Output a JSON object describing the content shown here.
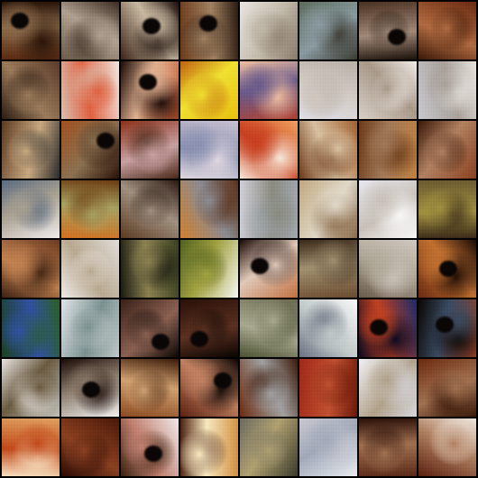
{
  "image": {
    "kind": "generated-sample-grid",
    "rows": 8,
    "columns": 8,
    "tiles": [
      {
        "colors": [
          "#5a2a12",
          "#8a6a4a",
          "#2a1408"
        ],
        "dark": true
      },
      {
        "colors": [
          "#6a5a4a",
          "#b0a090",
          "#3a2a20"
        ],
        "dark": false
      },
      {
        "colors": [
          "#3a2418",
          "#c8b8a0",
          "#1a0c08"
        ],
        "dark": true
      },
      {
        "colors": [
          "#6a3a1a",
          "#a08060",
          "#2a1a10"
        ],
        "dark": true
      },
      {
        "colors": [
          "#e8e4e0",
          "#c0b8a8",
          "#8a7a6a"
        ],
        "dark": false
      },
      {
        "colors": [
          "#5a6a5a",
          "#8a9aa0",
          "#3a3a30"
        ],
        "dark": false
      },
      {
        "colors": [
          "#4a3020",
          "#a08878",
          "#1a1008"
        ],
        "dark": true
      },
      {
        "colors": [
          "#6a2a10",
          "#b06a40",
          "#3a1808"
        ],
        "dark": false
      },
      {
        "colors": [
          "#5a3a2a",
          "#9a7a5a",
          "#2a1a10"
        ],
        "dark": false
      },
      {
        "colors": [
          "#f0e8e0",
          "#e06040",
          "#d8c0b0"
        ],
        "dark": false
      },
      {
        "colors": [
          "#c05028",
          "#e0b090",
          "#1a0a06"
        ],
        "dark": true
      },
      {
        "colors": [
          "#e8c010",
          "#f0e030",
          "#c06010"
        ],
        "dark": false
      },
      {
        "colors": [
          "#b04030",
          "#6a5a8a",
          "#f0c0a0"
        ],
        "dark": false
      },
      {
        "colors": [
          "#e0e0e8",
          "#d0c8c0",
          "#b8b0a8"
        ],
        "dark": false
      },
      {
        "colors": [
          "#d8d0c8",
          "#a89888",
          "#f0ece8"
        ],
        "dark": false
      },
      {
        "colors": [
          "#c8c8d0",
          "#a8a098",
          "#e8e4e0"
        ],
        "dark": false
      },
      {
        "colors": [
          "#5a3a20",
          "#c8a880",
          "#2a2a2a"
        ],
        "dark": false
      },
      {
        "colors": [
          "#a05020",
          "#8a7050",
          "#2a1008"
        ],
        "dark": true
      },
      {
        "colors": [
          "#8a3018",
          "#c8a0a0",
          "#4a2818"
        ],
        "dark": false
      },
      {
        "colors": [
          "#c8c0d0",
          "#8a90b0",
          "#e0d8e0"
        ],
        "dark": false
      },
      {
        "colors": [
          "#f0a060",
          "#c84020",
          "#f8e8d8"
        ],
        "dark": false
      },
      {
        "colors": [
          "#a06030",
          "#d8c0a0",
          "#6a3818"
        ],
        "dark": false
      },
      {
        "colors": [
          "#c08040",
          "#a07858",
          "#6a3a18"
        ],
        "dark": false
      },
      {
        "colors": [
          "#8a4020",
          "#b08060",
          "#3a1808"
        ],
        "dark": false
      },
      {
        "colors": [
          "#f0ecec",
          "#a8a090",
          "#5a6a80"
        ],
        "dark": false
      },
      {
        "colors": [
          "#d07020",
          "#a8a060",
          "#6a3a10"
        ],
        "dark": false
      },
      {
        "colors": [
          "#5a3a20",
          "#a09080",
          "#2a1810"
        ],
        "dark": false
      },
      {
        "colors": [
          "#d08030",
          "#8a8a90",
          "#5a3018"
        ],
        "dark": false
      },
      {
        "colors": [
          "#d0d0d8",
          "#8a8a80",
          "#a0a8b0"
        ],
        "dark": false
      },
      {
        "colors": [
          "#c0a880",
          "#e0d8c8",
          "#8a6a48"
        ],
        "dark": false
      },
      {
        "colors": [
          "#e8e8f0",
          "#c8c0b8",
          "#f8f8f8"
        ],
        "dark": false
      },
      {
        "colors": [
          "#6a5a30",
          "#a09040",
          "#3a2a18"
        ],
        "dark": false
      },
      {
        "colors": [
          "#6a3a20",
          "#c08050",
          "#3a2010"
        ],
        "dark": false
      },
      {
        "colors": [
          "#e0dcd8",
          "#b8a890",
          "#f0ece8"
        ],
        "dark": false
      },
      {
        "colors": [
          "#3a4020",
          "#8a8050",
          "#1a1a10"
        ],
        "dark": false
      },
      {
        "colors": [
          "#f8f8f0",
          "#a0a040",
          "#506020"
        ],
        "dark": false
      },
      {
        "colors": [
          "#c07040",
          "#e0c8b8",
          "#1a0a06"
        ],
        "dark": true
      },
      {
        "colors": [
          "#6a4a30",
          "#a09070",
          "#3a2818"
        ],
        "dark": false
      },
      {
        "colors": [
          "#6a5a4a",
          "#b0a898",
          "#d0c8c0"
        ],
        "dark": false
      },
      {
        "colors": [
          "#6a2a10",
          "#c07030",
          "#1a0a04"
        ],
        "dark": true
      },
      {
        "colors": [
          "#1a4020",
          "#3050a0",
          "#2a6020"
        ],
        "dark": false
      },
      {
        "colors": [
          "#e0e4e8",
          "#7a9090",
          "#c0c8c8"
        ],
        "dark": false
      },
      {
        "colors": [
          "#3a2018",
          "#8a6050",
          "#0a0604"
        ],
        "dark": true
      },
      {
        "colors": [
          "#2a1008",
          "#5a3020",
          "#0a0402"
        ],
        "dark": true
      },
      {
        "colors": [
          "#6a6a50",
          "#a8a890",
          "#4a5030"
        ],
        "dark": false
      },
      {
        "colors": [
          "#f8f8f8",
          "#c0c8c8",
          "#6a7080"
        ],
        "dark": false
      },
      {
        "colors": [
          "#1a2a6a",
          "#c04020",
          "#0a0a20"
        ],
        "dark": true
      },
      {
        "colors": [
          "#a04020",
          "#3a4a60",
          "#0a0604"
        ],
        "dark": true
      },
      {
        "colors": [
          "#c0c0b8",
          "#6a5a40",
          "#e8e4e0"
        ],
        "dark": false
      },
      {
        "colors": [
          "#f0f0f0",
          "#8a7a6a",
          "#1a0a06"
        ],
        "dark": true
      },
      {
        "colors": [
          "#8a4a20",
          "#d0a070",
          "#3a1a08"
        ],
        "dark": false
      },
      {
        "colors": [
          "#5a2010",
          "#c08060",
          "#0a0402"
        ],
        "dark": true
      },
      {
        "colors": [
          "#6a2a10",
          "#a0a0a0",
          "#3a1808"
        ],
        "dark": false
      },
      {
        "colors": [
          "#a02818",
          "#c05030",
          "#6a1808"
        ],
        "dark": false
      },
      {
        "colors": [
          "#f0f0f4",
          "#b0a088",
          "#d8d8e0"
        ],
        "dark": false
      },
      {
        "colors": [
          "#6a2a10",
          "#a07050",
          "#3a1808"
        ],
        "dark": false
      },
      {
        "colors": [
          "#e0a060",
          "#c04818",
          "#f8e0c0"
        ],
        "dark": false
      },
      {
        "colors": [
          "#4a1808",
          "#8a4020",
          "#2a0a04"
        ],
        "dark": false
      },
      {
        "colors": [
          "#f0e8e8",
          "#c08070",
          "#3a2010"
        ],
        "dark": true
      },
      {
        "colors": [
          "#d09040",
          "#f8e8c0",
          "#4a2010"
        ],
        "dark": false
      },
      {
        "colors": [
          "#3a3a2a",
          "#b0a070",
          "#6a6a60"
        ],
        "dark": false
      },
      {
        "colors": [
          "#e8ecf0",
          "#a0a8b8",
          "#c8c8d0"
        ],
        "dark": false
      },
      {
        "colors": [
          "#5a2a18",
          "#a07050",
          "#2a1008"
        ],
        "dark": false
      },
      {
        "colors": [
          "#5a2010",
          "#b08060",
          "#f0e8e0"
        ],
        "dark": false
      }
    ]
  }
}
